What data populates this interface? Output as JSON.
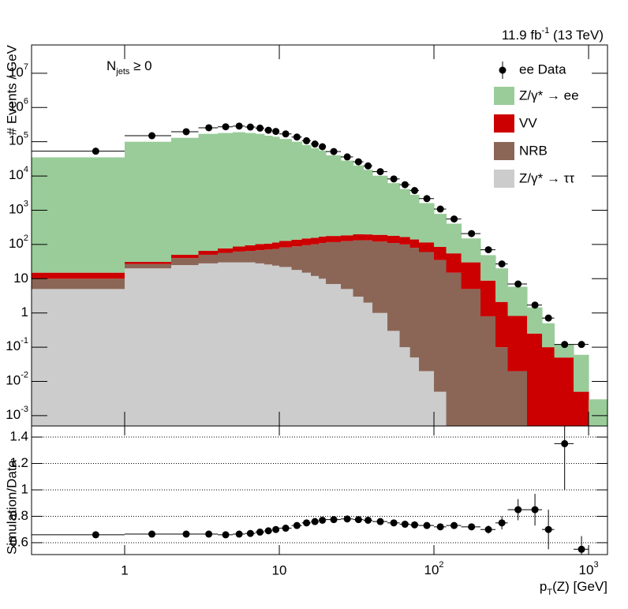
{
  "chart_data": {
    "type": "histogram",
    "lumi": "11.9 fb",
    "lumi_exponent": "-1",
    "lumi_rest": " (13 TeV)",
    "annotation": "N",
    "annotation_sub": "jets",
    "annotation_rest": " ≥ 0",
    "ylabel": "# Events / GeV",
    "xlabel": "p",
    "xlabel_sub": "T",
    "xlabel_rest": "(Z) [GeV]",
    "log_x": true,
    "log_y": true,
    "xlim": [
      0.25,
      1325
    ],
    "xticks": [
      1,
      10,
      {
        "value": 100,
        "label": "10",
        "exponent": "2"
      },
      {
        "value": 1000,
        "label": "10",
        "exponent": "3"
      }
    ],
    "ylim": [
      0.0005,
      67000000
    ],
    "yticks": [
      {
        "value": 0.001,
        "label": "10",
        "exponent": "-3"
      },
      {
        "value": 0.01,
        "label": "10",
        "exponent": "-2"
      },
      {
        "value": 0.1,
        "label": "10",
        "exponent": "-1"
      },
      1,
      10,
      {
        "value": 100,
        "label": "10",
        "exponent": "2"
      },
      {
        "value": 1000,
        "label": "10",
        "exponent": "3"
      },
      {
        "value": 10000,
        "label": "10",
        "exponent": "4"
      },
      {
        "value": 100000,
        "label": "10",
        "exponent": "5"
      },
      {
        "value": 1000000,
        "label": "10",
        "exponent": "6"
      },
      {
        "value": 10000000,
        "label": "10",
        "exponent": "7"
      }
    ],
    "bins": [
      0.25,
      1,
      2,
      3,
      4,
      5,
      6,
      7,
      8,
      9,
      10,
      12,
      14,
      16,
      18,
      20,
      25,
      30,
      35,
      40,
      50,
      60,
      70,
      80,
      100,
      120,
      150,
      200,
      250,
      300,
      400,
      500,
      600,
      800,
      1000,
      1325
    ],
    "series": [
      {
        "name": "Z/γ* → ee",
        "color": "#99cc99",
        "values": [
          35000,
          100000,
          130000,
          170000,
          180000,
          190000,
          180000,
          170000,
          150000,
          140000,
          120000,
          100000,
          80000,
          65000,
          55000,
          40000,
          28000,
          20000,
          15000,
          10000,
          6000,
          4000,
          2700,
          1500,
          700,
          350,
          120,
          40,
          18,
          5,
          1.2,
          0.4,
          0.07,
          0.055,
          0.0025
        ]
      },
      {
        "name": "VV",
        "color": "#cc0000",
        "values": [
          5,
          4,
          10,
          15,
          20,
          25,
          30,
          35,
          35,
          40,
          45,
          50,
          55,
          55,
          60,
          60,
          60,
          65,
          65,
          70,
          70,
          65,
          60,
          55,
          50,
          40,
          25,
          8,
          2,
          0.8,
          0.25,
          0.1,
          0.05,
          0.005,
          0.0005
        ]
      },
      {
        "name": "NRB",
        "color": "#8b6657",
        "values": [
          5,
          7,
          15,
          22,
          27,
          32,
          35,
          40,
          45,
          50,
          60,
          70,
          80,
          90,
          100,
          110,
          120,
          130,
          130,
          120,
          110,
          100,
          80,
          60,
          35,
          15,
          5,
          0.8,
          0.1,
          0.02,
          0,
          0,
          0,
          0,
          0
        ]
      },
      {
        "name": "Z/γ* → ττ",
        "color": "#cccccc",
        "values": [
          5,
          20,
          25,
          28,
          30,
          30,
          30,
          28,
          26,
          24,
          22,
          18,
          15,
          12,
          10,
          7,
          5,
          3,
          2,
          1,
          0.3,
          0.1,
          0.05,
          0.02,
          0.005,
          0,
          0,
          0,
          0,
          0,
          0,
          0,
          0,
          0,
          0
        ]
      }
    ],
    "data": {
      "name": "ee Data",
      "color": "#000000",
      "x": [
        0.65,
        1.5,
        2.5,
        3.5,
        4.5,
        5.5,
        6.5,
        7.5,
        8.5,
        9.5,
        11,
        13,
        15,
        17,
        19,
        22.5,
        27.5,
        32.5,
        37.5,
        45,
        55,
        65,
        75,
        90,
        110,
        135,
        175,
        225,
        275,
        350,
        450,
        550,
        700,
        900
      ],
      "values": [
        53000,
        150000,
        196000,
        256000,
        273000,
        286000,
        269000,
        250000,
        217000,
        200000,
        169000,
        137000,
        107000,
        86000,
        71500,
        51800,
        36000,
        26000,
        19700,
        13400,
        8200,
        5570,
        3760,
        2180,
        1080,
        555,
        208,
        70,
        27,
        7,
        1.7,
        0.71,
        0.12,
        0.12
      ]
    },
    "ratio": {
      "ylabel": "Simulation/Data",
      "ylim": [
        0.51,
        1.484
      ],
      "yticks": [
        0.6,
        0.8,
        1,
        1.2,
        1.4
      ],
      "grid": true,
      "values": [
        0.66,
        0.665,
        0.665,
        0.665,
        0.66,
        0.665,
        0.67,
        0.68,
        0.69,
        0.7,
        0.71,
        0.73,
        0.75,
        0.76,
        0.77,
        0.775,
        0.78,
        0.775,
        0.77,
        0.76,
        0.75,
        0.74,
        0.735,
        0.73,
        0.72,
        0.73,
        0.72,
        0.7,
        0.75,
        0.85,
        0.85,
        0.7,
        1.35,
        0.55
      ],
      "errors": [
        0.003,
        0.003,
        0.003,
        0.003,
        0.003,
        0.003,
        0.003,
        0.003,
        0.003,
        0.003,
        0.003,
        0.003,
        0.003,
        0.003,
        0.003,
        0.003,
        0.004,
        0.004,
        0.005,
        0.005,
        0.006,
        0.007,
        0.008,
        0.01,
        0.012,
        0.015,
        0.02,
        0.03,
        0.05,
        0.08,
        0.12,
        0.15,
        0.35,
        0.1
      ]
    }
  }
}
